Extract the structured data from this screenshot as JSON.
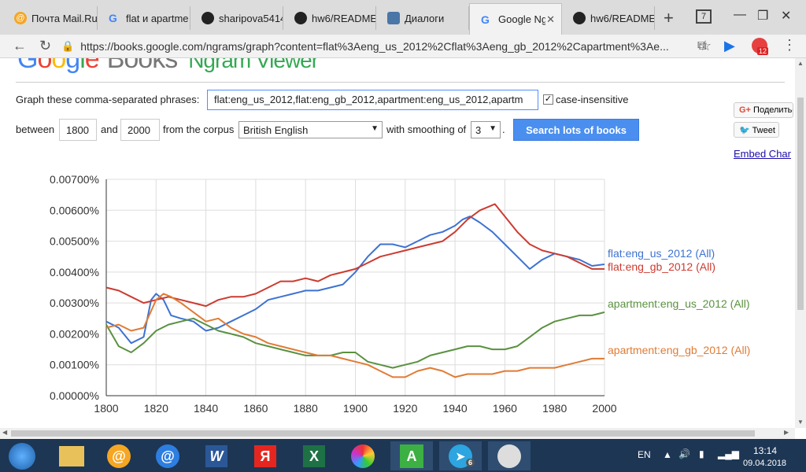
{
  "browser": {
    "tabs": [
      {
        "title": "Почта Mail.Ru",
        "active": false
      },
      {
        "title": "flat и apartme",
        "active": false
      },
      {
        "title": "sharipova5414",
        "active": false
      },
      {
        "title": "hw6/README.",
        "active": false
      },
      {
        "title": "Диалоги",
        "active": false
      },
      {
        "title": "Google Ng",
        "active": true
      },
      {
        "title": "hw6/README",
        "active": false
      }
    ],
    "tab_counter": "7",
    "url": "https://books.google.com/ngrams/graph?content=flat%3Aeng_us_2012%2Cflat%3Aeng_gb_2012%2Capartment%3Ae...",
    "ext_badge": "12"
  },
  "page": {
    "logo_books": "Books",
    "logo_ngram": "Ngram Viewer",
    "graph_label": "Graph these comma-separated phrases:",
    "phrase_value": "flat:eng_us_2012,flat:eng_gb_2012,apartment:eng_us_2012,apartm",
    "case_insensitive": "case-insensitive",
    "between": "between",
    "year_start": "1800",
    "and": "and",
    "year_end": "2000",
    "from_corpus": "from the corpus",
    "corpus": "British English",
    "with_smoothing": "with smoothing of",
    "smoothing": "3",
    "period": ".",
    "search_button": "Search lots of books",
    "share_label": "Поделитьс",
    "tweet_label": "Tweet",
    "embed_label": "Embed Char"
  },
  "chart_data": {
    "type": "line",
    "xlim": [
      1800,
      2000
    ],
    "ylim": [
      0,
      0.007
    ],
    "xticks": [
      "1800",
      "1820",
      "1840",
      "1860",
      "1880",
      "1900",
      "1920",
      "1940",
      "1960",
      "1980",
      "2000"
    ],
    "yticks": [
      "0.00000%",
      "0.00100%",
      "0.00200%",
      "0.00300%",
      "0.00400%",
      "0.00500%",
      "0.00600%",
      "0.00700%"
    ],
    "series": [
      {
        "name": "flat:eng_us_2012 (All)",
        "color": "#3d72d1",
        "x": [
          1800,
          1805,
          1810,
          1815,
          1818,
          1820,
          1823,
          1826,
          1830,
          1835,
          1840,
          1845,
          1850,
          1855,
          1860,
          1865,
          1870,
          1875,
          1880,
          1885,
          1890,
          1895,
          1900,
          1905,
          1910,
          1915,
          1920,
          1925,
          1930,
          1935,
          1940,
          1943,
          1946,
          1950,
          1955,
          1960,
          1965,
          1970,
          1975,
          1980,
          1985,
          1990,
          1995,
          2000
        ],
        "y": [
          0.0024,
          0.0022,
          0.0017,
          0.0019,
          0.0031,
          0.0033,
          0.0031,
          0.0026,
          0.0025,
          0.0024,
          0.0021,
          0.0022,
          0.0024,
          0.0026,
          0.0028,
          0.0031,
          0.0032,
          0.0033,
          0.0034,
          0.0034,
          0.0035,
          0.0036,
          0.004,
          0.0045,
          0.0049,
          0.0049,
          0.0048,
          0.005,
          0.0052,
          0.0053,
          0.0055,
          0.0057,
          0.0058,
          0.0056,
          0.0053,
          0.0049,
          0.0045,
          0.0041,
          0.0044,
          0.0046,
          0.0045,
          0.0044,
          0.0042,
          0.00425
        ]
      },
      {
        "name": "flat:eng_gb_2012 (All)",
        "color": "#cc3b30",
        "x": [
          1800,
          1805,
          1810,
          1815,
          1820,
          1825,
          1830,
          1835,
          1840,
          1845,
          1850,
          1855,
          1860,
          1865,
          1870,
          1875,
          1880,
          1885,
          1890,
          1895,
          1900,
          1905,
          1910,
          1915,
          1920,
          1925,
          1930,
          1935,
          1940,
          1945,
          1950,
          1953,
          1956,
          1960,
          1965,
          1970,
          1975,
          1980,
          1985,
          1990,
          1995,
          2000
        ],
        "y": [
          0.0035,
          0.0034,
          0.0032,
          0.003,
          0.0031,
          0.0032,
          0.0031,
          0.003,
          0.0029,
          0.0031,
          0.0032,
          0.0032,
          0.0033,
          0.0035,
          0.0037,
          0.0037,
          0.0038,
          0.0037,
          0.0039,
          0.004,
          0.0041,
          0.0043,
          0.0045,
          0.0046,
          0.0047,
          0.0048,
          0.0049,
          0.005,
          0.0053,
          0.0057,
          0.006,
          0.0061,
          0.0062,
          0.0058,
          0.0053,
          0.0049,
          0.0047,
          0.0046,
          0.0045,
          0.0043,
          0.0041,
          0.0041
        ]
      },
      {
        "name": "apartment:eng_us_2012 (All)",
        "color": "#5a9140",
        "x": [
          1800,
          1805,
          1810,
          1815,
          1820,
          1825,
          1830,
          1835,
          1840,
          1845,
          1850,
          1855,
          1860,
          1865,
          1870,
          1875,
          1880,
          1885,
          1890,
          1895,
          1900,
          1905,
          1910,
          1915,
          1920,
          1925,
          1930,
          1935,
          1940,
          1945,
          1950,
          1955,
          1960,
          1965,
          1970,
          1975,
          1980,
          1985,
          1990,
          1995,
          2000
        ],
        "y": [
          0.0023,
          0.0016,
          0.0014,
          0.0017,
          0.0021,
          0.0023,
          0.0024,
          0.0025,
          0.0023,
          0.0021,
          0.002,
          0.0019,
          0.0017,
          0.0016,
          0.0015,
          0.0014,
          0.0013,
          0.0013,
          0.0013,
          0.0014,
          0.0014,
          0.0011,
          0.001,
          0.0009,
          0.001,
          0.0011,
          0.0013,
          0.0014,
          0.0015,
          0.0016,
          0.0016,
          0.0015,
          0.0015,
          0.0016,
          0.0019,
          0.0022,
          0.0024,
          0.0025,
          0.0026,
          0.0026,
          0.0027
        ]
      },
      {
        "name": "apartment:eng_gb_2012 (All)",
        "color": "#e07b35",
        "x": [
          1800,
          1805,
          1810,
          1815,
          1820,
          1823,
          1826,
          1830,
          1835,
          1840,
          1845,
          1850,
          1855,
          1860,
          1865,
          1870,
          1875,
          1880,
          1885,
          1890,
          1895,
          1900,
          1905,
          1910,
          1915,
          1920,
          1925,
          1930,
          1935,
          1940,
          1945,
          1950,
          1955,
          1960,
          1965,
          1970,
          1975,
          1980,
          1985,
          1990,
          1995,
          2000
        ],
        "y": [
          0.0022,
          0.0023,
          0.0021,
          0.0022,
          0.0031,
          0.0033,
          0.0032,
          0.003,
          0.0027,
          0.0024,
          0.0025,
          0.0022,
          0.002,
          0.0019,
          0.0017,
          0.0016,
          0.0015,
          0.0014,
          0.0013,
          0.0013,
          0.0012,
          0.0011,
          0.001,
          0.0008,
          0.0006,
          0.0006,
          0.0008,
          0.0009,
          0.0008,
          0.0006,
          0.0007,
          0.0007,
          0.0007,
          0.0008,
          0.0008,
          0.0009,
          0.0009,
          0.0009,
          0.001,
          0.0011,
          0.0012,
          0.0012
        ]
      }
    ]
  },
  "taskbar": {
    "lang": "EN",
    "time": "13:14",
    "date": "09.04.2018",
    "telegram_badge": "6"
  }
}
